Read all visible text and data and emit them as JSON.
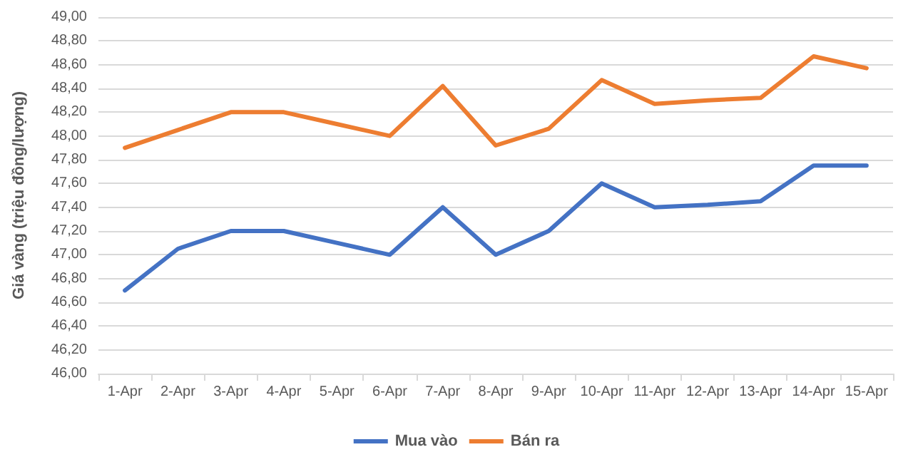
{
  "chart_data": {
    "type": "line",
    "ylabel": "Giá vàng (triệu đồng/lượng)",
    "categories": [
      "1-Apr",
      "2-Apr",
      "3-Apr",
      "4-Apr",
      "5-Apr",
      "6-Apr",
      "7-Apr",
      "8-Apr",
      "9-Apr",
      "10-Apr",
      "11-Apr",
      "12-Apr",
      "13-Apr",
      "14-Apr",
      "15-Apr"
    ],
    "series": [
      {
        "name": "Mua vào",
        "color": "#4472c4",
        "values": [
          46.7,
          47.05,
          47.2,
          47.2,
          47.1,
          47.0,
          47.4,
          47.0,
          47.2,
          47.6,
          47.4,
          47.42,
          47.45,
          47.75,
          47.75
        ]
      },
      {
        "name": "Bán ra",
        "color": "#ed7d31",
        "values": [
          47.9,
          48.05,
          48.2,
          48.2,
          48.1,
          48.0,
          48.42,
          47.92,
          48.06,
          48.47,
          48.27,
          48.3,
          48.32,
          48.67,
          48.57
        ]
      }
    ],
    "ylim": [
      46,
      49
    ],
    "yticks": [
      {
        "value": 46,
        "label": "46,00"
      },
      {
        "value": 46.2,
        "label": "46,20"
      },
      {
        "value": 46.4,
        "label": "46,40"
      },
      {
        "value": 46.6,
        "label": "46,60"
      },
      {
        "value": 46.8,
        "label": "46,80"
      },
      {
        "value": 47,
        "label": "47,00"
      },
      {
        "value": 47.2,
        "label": "47,20"
      },
      {
        "value": 47.4,
        "label": "47,40"
      },
      {
        "value": 47.6,
        "label": "47,60"
      },
      {
        "value": 47.8,
        "label": "47,80"
      },
      {
        "value": 48,
        "label": "48,00"
      },
      {
        "value": 48.2,
        "label": "48,20"
      },
      {
        "value": 48.4,
        "label": "48,40"
      },
      {
        "value": 48.6,
        "label": "48,60"
      },
      {
        "value": 48.8,
        "label": "48,80"
      },
      {
        "value": 49,
        "label": "49,00"
      }
    ],
    "grid": "y",
    "legend": "bottom",
    "marker": "none",
    "line_style": "solid"
  }
}
